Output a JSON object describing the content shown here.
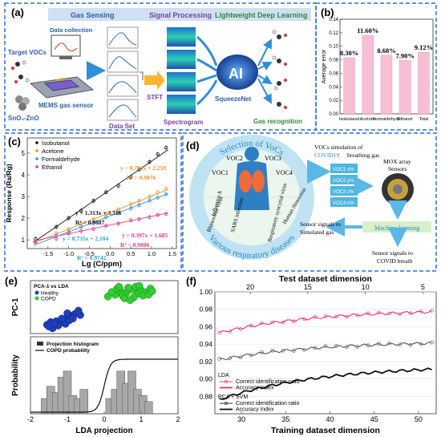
{
  "panel_a": {
    "tag": "(a)",
    "stage_labels": [
      "Gas Sensing",
      "Signal Processing",
      "Lightweight Deep Learning"
    ],
    "target_vocs": "Target VOCs",
    "data_collection": "Data collection",
    "sno2": "SnO₂-ZnO",
    "mems": "MEMS gas sensor",
    "dataset": "Data Set",
    "stft": "STFT",
    "spectrogram": "Spectrogram",
    "ai": "AI",
    "squeezenet": "SqueezeNet",
    "gas_recognition": "Gas recognition",
    "colors": {
      "stage_bg": "#cfe0f2",
      "gas_sensing": "#2b5fa8",
      "signal": "#7b3fa0",
      "deep": "#2a8a3a",
      "border": "#2f6fd6"
    }
  },
  "panel_b": {
    "tag": "(b)",
    "chart_data": {
      "type": "bar",
      "categories": [
        "Isobutanol",
        "Acetone",
        "Formaldehyde",
        "Ethanol",
        "Total"
      ],
      "values": [
        0.083,
        0.116,
        0.0868,
        0.079,
        0.0912
      ],
      "data_labels": [
        "8.30%",
        "11.60%",
        "8.68%",
        "7.90%",
        "9.12%"
      ],
      "ylabel": "Average error",
      "ylim": [
        0,
        0.14
      ],
      "yticks": [
        "0.00",
        "0.02",
        "0.04",
        "0.06",
        "0.08",
        "0.10",
        "0.12",
        "0.14"
      ],
      "ytick_values": [
        0,
        0.02,
        0.04,
        0.06,
        0.08,
        0.1,
        0.12,
        0.14
      ],
      "bar_color": "#f7bfd6"
    }
  },
  "panel_c": {
    "tag": "(c)",
    "chart_data": {
      "type": "scatter",
      "xlabel": "Lg (C/ppm)",
      "ylabel": "Response (Ra/Rg)",
      "xlim": [
        -2.0,
        1.6
      ],
      "ylim": [
        0.6,
        5.7
      ],
      "xticks": [
        -1.5,
        -1.0,
        -0.5,
        0.0,
        0.5,
        1.0,
        1.5
      ],
      "xtick_labels": [
        "-1.5",
        "-1.0",
        "-0.5",
        "0.0",
        "0.5",
        "1.0",
        "1.5"
      ],
      "yticks": [
        1,
        2,
        3,
        4,
        5
      ],
      "yticks_labels": [
        "1",
        "2",
        "3",
        "4",
        "5"
      ],
      "x": [
        -1.8,
        -1.3,
        -1.0,
        -0.7,
        -0.4,
        -0.1,
        0.2,
        0.5,
        0.7,
        0.95,
        1.15,
        1.35
      ],
      "series": [
        {
          "name": "Isobutanol",
          "color": "#111111",
          "slope": 1.313,
          "intercept": 3.316,
          "values": [
            1.05,
            1.6,
            2.0,
            2.35,
            2.8,
            3.2,
            3.5,
            3.9,
            4.25,
            4.6,
            4.95,
            5.25
          ]
        },
        {
          "name": "Acetone",
          "color": "#f0922b",
          "slope": 0.764,
          "intercept": 2.259,
          "values": [
            0.95,
            1.3,
            1.5,
            1.75,
            1.95,
            2.2,
            2.4,
            2.65,
            2.8,
            3.0,
            3.2,
            3.35
          ]
        },
        {
          "name": "Formaldehyde",
          "color": "#2e9ad6",
          "slope": 0.735,
          "intercept": 2.104,
          "values": [
            0.9,
            1.2,
            1.35,
            1.6,
            1.8,
            2.05,
            2.25,
            2.45,
            2.6,
            2.8,
            2.95,
            3.1
          ]
        },
        {
          "name": "Ethanol",
          "color": "#e8368f",
          "slope": 0.397,
          "intercept": 1.685,
          "values": [
            0.9,
            1.05,
            1.3,
            1.4,
            1.5,
            1.65,
            1.75,
            1.9,
            1.95,
            2.05,
            2.15,
            2.2
          ]
        }
      ],
      "equations": [
        {
          "text": "y = 1.313x + 3.316",
          "r2": "R² = 0.9887",
          "color": "#111111"
        },
        {
          "text": "y = 0.764x + 2.259",
          "r2": "R² = 0.9876",
          "color": "#f0922b"
        },
        {
          "text": "y = 0.735x + 2.104",
          "r2": "R² = 0.9742",
          "color": "#2e9ad6"
        },
        {
          "text": "y = 0.397x + 1.685",
          "r2": "R² = 0.9886",
          "color": "#e8368f"
        }
      ]
    }
  },
  "panel_d": {
    "tag": "(d)",
    "ring_top": "Selection of VoCs",
    "ring_bottom": "Various respiratory diseases",
    "vocs": [
      "VOC1",
      "VOC2",
      "VOC3",
      "VOC4"
    ],
    "diseases": [
      "Influenza A",
      "Rhinovirus virus",
      "SARS infection",
      "Respiratory syncytial virus",
      "Human rhinovirus"
    ],
    "sim_text_1": "VOCs simulation of",
    "sim_text_2": "COVID19",
    "sim_text_3": "breathing gas",
    "voc_boxes": [
      "VOC1 x%",
      "VOC2 y%",
      "VOC3 z%",
      "VOC4 n%"
    ],
    "mox": "MOX array",
    "sensors": "Sensors",
    "ml": "Machine learning",
    "sig_sim_1": "Sensor signals to",
    "sig_sim_2": "Simulated gas",
    "sig_covid_1": "Sensor signals to",
    "sig_covid_2": "COVID breath",
    "colors": {
      "ring": "#bfe3f2",
      "ring_text": "#2a86c5",
      "arrow": "#5ab7e6",
      "box": "#4fb6e0",
      "green": "#d8efc8"
    }
  },
  "panel_e": {
    "tag": "(e)",
    "top": {
      "ylabel": "PC-1",
      "legend_title": "PCA-1 vs LDA",
      "legend": [
        {
          "name": "Healthy",
          "color": "#1f3fbf"
        },
        {
          "name": "COPD",
          "color": "#2fcf2f"
        }
      ],
      "healthy_points": [
        [
          -1.55,
          -1.1
        ],
        [
          -1.4,
          -1.3
        ],
        [
          -1.3,
          -0.9
        ],
        [
          -1.2,
          -1.0
        ],
        [
          -1.1,
          -0.8
        ],
        [
          -1.0,
          -0.7
        ],
        [
          -0.9,
          -0.6
        ],
        [
          -0.8,
          -0.5
        ],
        [
          -1.45,
          -0.95
        ],
        [
          -1.25,
          -1.15
        ],
        [
          -1.05,
          -1.05
        ],
        [
          -0.95,
          -0.85
        ],
        [
          -0.85,
          -0.75
        ],
        [
          -0.75,
          -0.45
        ],
        [
          -1.15,
          -0.75
        ],
        [
          -1.35,
          -1.05
        ],
        [
          -0.65,
          -0.55
        ],
        [
          -1.5,
          -1.2
        ],
        [
          -0.7,
          -0.3
        ],
        [
          -1.0,
          -0.45
        ]
      ],
      "copd_points": [
        [
          0.1,
          0.5
        ],
        [
          0.3,
          0.6
        ],
        [
          0.45,
          0.8
        ],
        [
          0.6,
          0.7
        ],
        [
          0.75,
          0.9
        ],
        [
          0.9,
          0.65
        ],
        [
          1.0,
          0.85
        ],
        [
          1.15,
          0.75
        ],
        [
          1.25,
          0.95
        ],
        [
          0.5,
          0.55
        ],
        [
          0.65,
          1.0
        ],
        [
          0.85,
          1.05
        ],
        [
          1.05,
          0.55
        ],
        [
          0.2,
          0.75
        ],
        [
          0.35,
          0.95
        ],
        [
          0.95,
          1.1
        ],
        [
          1.2,
          0.6
        ],
        [
          0.55,
          0.4
        ],
        [
          0.8,
          0.45
        ],
        [
          1.3,
          0.8
        ],
        [
          0.4,
          1.05
        ],
        [
          0.7,
          0.3
        ]
      ]
    },
    "bottom": {
      "ylabel": "Probability",
      "xlabel": "LDA projection",
      "legend": [
        "Projection histogram",
        "COPD probability"
      ],
      "xticks": [
        -2,
        -1,
        0,
        1,
        2
      ],
      "xtick_labels": [
        "-2",
        "-1",
        "0",
        "1",
        "2"
      ],
      "xlim": [
        -2,
        2
      ],
      "hist_x": [
        -1.6,
        -1.45,
        -1.3,
        -1.15,
        -1.0,
        -0.85,
        -0.7,
        -0.55,
        0.15,
        0.3,
        0.45,
        0.6,
        0.75,
        0.9,
        1.05,
        1.2
      ],
      "hist_h": [
        0.25,
        0.45,
        0.35,
        0.6,
        0.7,
        0.3,
        0.25,
        0.4,
        0.25,
        0.4,
        0.7,
        0.5,
        0.7,
        0.4,
        0.3,
        0.2
      ]
    }
  },
  "panel_f": {
    "tag": "(f)",
    "chart_data": {
      "type": "line",
      "title_top": "Test dataset dimension",
      "xlabel": "Training dataset dimension",
      "xlim": [
        27,
        52
      ],
      "ylim": [
        0.86,
        1.0
      ],
      "xticks": [
        30,
        35,
        40,
        45,
        50
      ],
      "xtick_labels": [
        "30",
        "35",
        "40",
        "45",
        "50"
      ],
      "top_xticks": [
        20,
        15,
        10,
        5
      ],
      "top_tick_pos": [
        31,
        37.5,
        44,
        50.5
      ],
      "yticks": [
        0.88,
        0.9,
        0.92,
        0.94,
        0.96,
        0.98,
        1.0
      ],
      "ytick_labels": [
        "0.88",
        "0.90",
        "0.92",
        "0.94",
        "0.96",
        "0.98",
        "1.00"
      ],
      "legend_groups": [
        {
          "name": "LDA",
          "entries": [
            "Correct identification ratio",
            "Accuracy index"
          ],
          "color": "#e8306a"
        },
        {
          "name": "PCA + SVM",
          "entries": [
            "Correct identification ratio",
            "Accuracy index"
          ],
          "color": "#111111"
        }
      ],
      "series": [
        {
          "name": "LDA Correct identification ratio",
          "color": "#e8306a",
          "start": 0.953,
          "end": 0.977
        },
        {
          "name": "PCA + SVM Correct identification ratio",
          "color": "#555555",
          "start": 0.922,
          "end": 0.941
        },
        {
          "name": "PCA + SVM Accuracy index",
          "color": "#111111",
          "start": 0.876,
          "end": 0.911
        }
      ]
    }
  }
}
